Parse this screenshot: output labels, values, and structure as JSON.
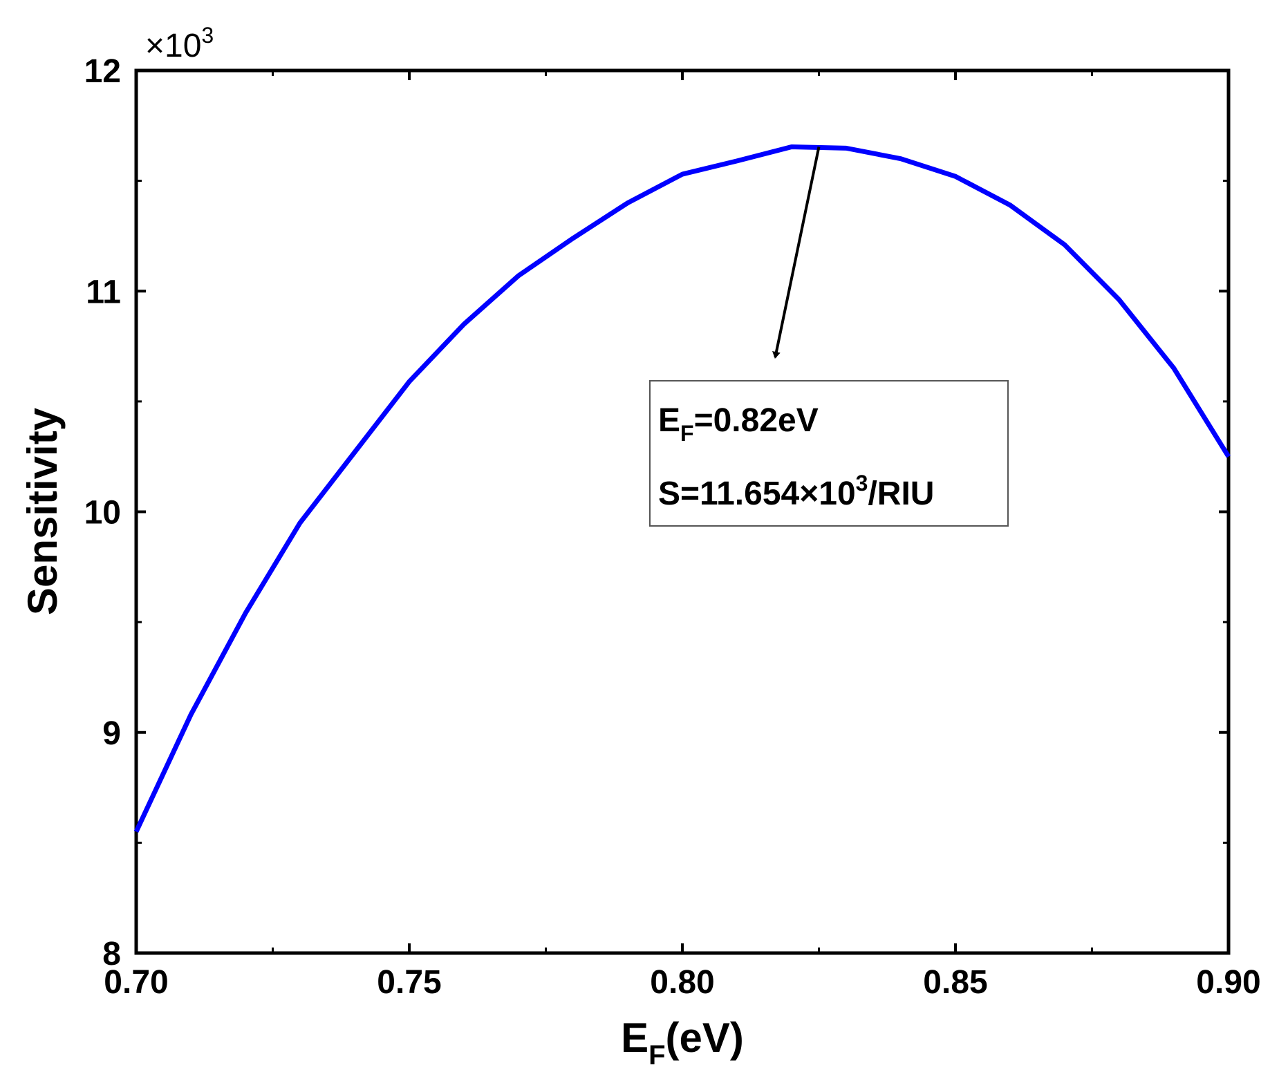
{
  "chart_data": {
    "type": "line",
    "x": [
      0.7,
      0.71,
      0.72,
      0.73,
      0.74,
      0.75,
      0.76,
      0.77,
      0.78,
      0.79,
      0.8,
      0.81,
      0.82,
      0.83,
      0.84,
      0.85,
      0.86,
      0.87,
      0.88,
      0.89,
      0.9
    ],
    "series": [
      {
        "color": "#0000ff",
        "values": [
          8.55,
          9.08,
          9.54,
          9.95,
          10.27,
          10.59,
          10.85,
          11.07,
          11.24,
          11.4,
          11.53,
          11.59,
          11.654,
          11.648,
          11.6,
          11.52,
          11.39,
          11.21,
          10.96,
          10.65,
          10.25
        ]
      }
    ],
    "xlabel": {
      "main": "E",
      "sub": "F",
      "rest": "(eV)"
    },
    "ylabel": "Sensitivity",
    "y_multiplier": {
      "prefix": "×10",
      "exp": "3"
    },
    "xlim": [
      0.7,
      0.9
    ],
    "ylim": [
      8,
      12
    ],
    "xticks": [
      0.7,
      0.75,
      0.8,
      0.85,
      0.9
    ],
    "xtick_labels": [
      "0.70",
      "0.75",
      "0.80",
      "0.85",
      "0.90"
    ],
    "yticks": [
      8,
      9,
      10,
      11,
      12
    ],
    "ytick_labels": [
      "8",
      "9",
      "10",
      "11",
      "12"
    ],
    "grid": false,
    "annotation": {
      "target": {
        "x": 0.825,
        "y": 11.654
      },
      "arrow_tip": {
        "x": 0.817,
        "y": 10.7
      },
      "line1": {
        "main": "E",
        "sub": "F",
        "rest": "=0.82eV"
      },
      "line2": {
        "prefix": "S=11.654×10",
        "exp": "3",
        "suffix": "/RIU"
      }
    }
  }
}
